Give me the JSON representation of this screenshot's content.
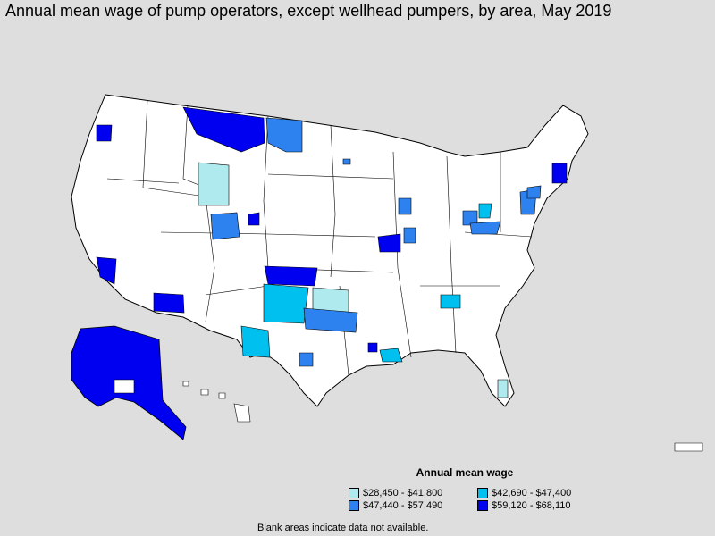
{
  "title": "Annual mean wage of pump operators, except wellhead pumpers, by area, May 2019",
  "legend": {
    "title": "Annual mean wage",
    "items": [
      {
        "label": "$28,450 - $41,800",
        "color": "#aeeaee"
      },
      {
        "label": "$42,690 - $47,400",
        "color": "#00c0f0"
      },
      {
        "label": "$47,440 - $57,490",
        "color": "#2e82f0"
      },
      {
        "label": "$59,120 - $68,110",
        "color": "#0000f0"
      }
    ]
  },
  "note": "Blank areas indicate data not available.",
  "colors": {
    "background": "#dedede",
    "land": "#ffffff",
    "border": "#000000"
  }
}
